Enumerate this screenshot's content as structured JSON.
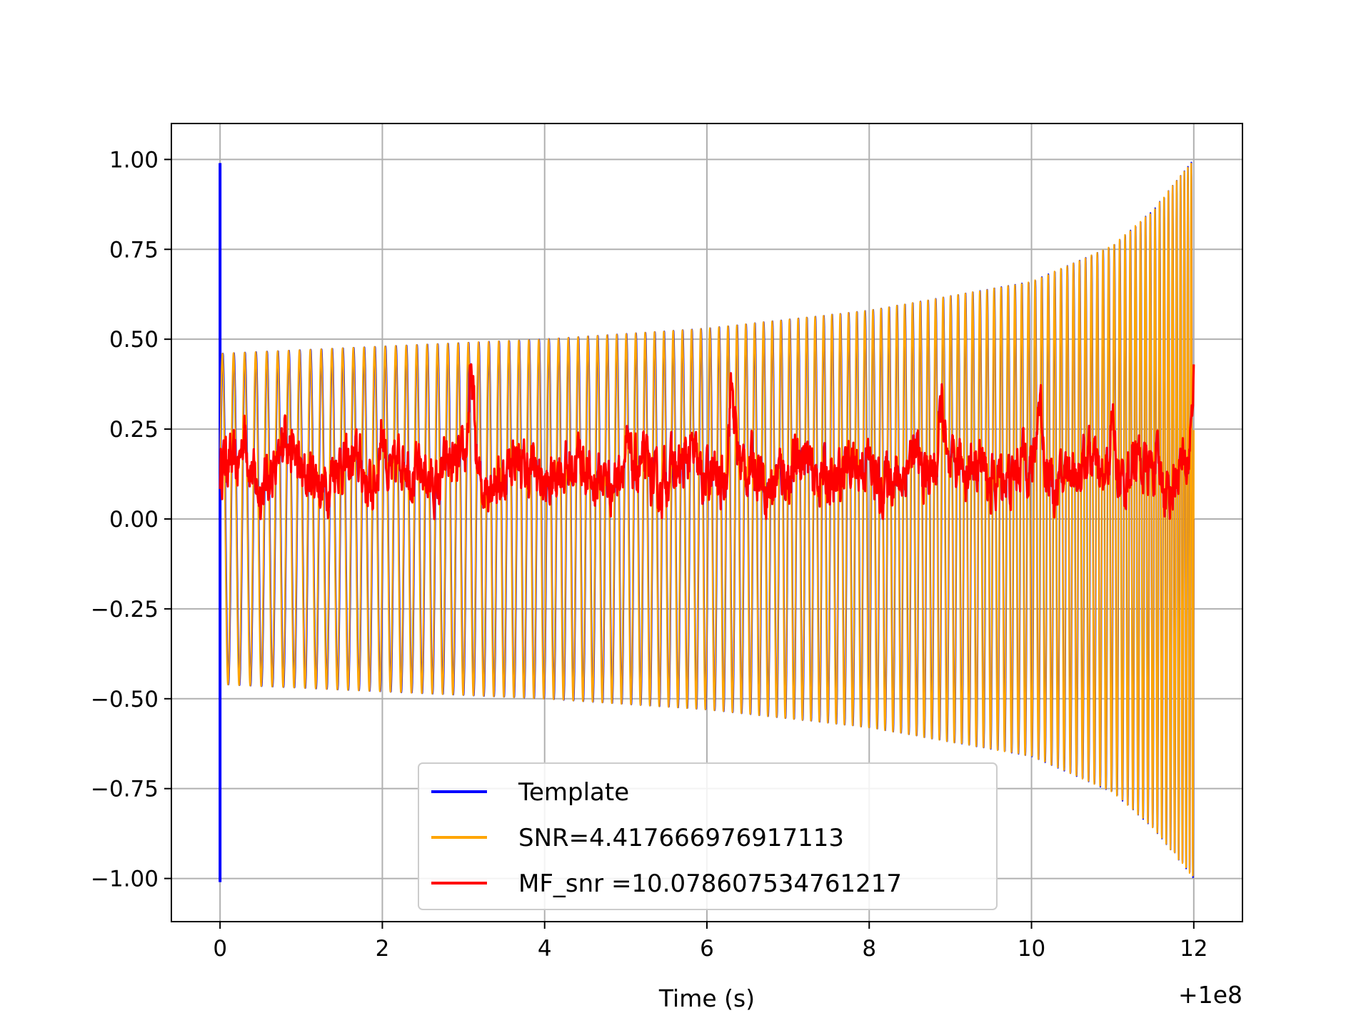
{
  "chart_data": {
    "type": "line",
    "xlabel": "Time (s)",
    "ylabel": "",
    "title": "",
    "x_offset_label": "+1e8",
    "x_offset": 100000000,
    "xlim": [
      99999999.4,
      100000012.6
    ],
    "ylim": [
      -1.12,
      1.1
    ],
    "x_ticks": [
      0,
      2,
      4,
      6,
      8,
      10,
      12
    ],
    "x_tick_labels": [
      "0",
      "2",
      "4",
      "6",
      "8",
      "10",
      "12"
    ],
    "y_ticks": [
      1.0,
      0.75,
      0.5,
      0.25,
      0.0,
      -0.25,
      -0.5,
      -0.75,
      -1.0
    ],
    "y_tick_labels": [
      "1.00",
      "0.75",
      "0.50",
      "0.25",
      "0.00",
      "−0.25",
      "−0.50",
      "−0.75",
      "−1.00"
    ],
    "grid": true,
    "legend_position": "bottom-center",
    "series": [
      {
        "name": "Template",
        "color": "#0000ff",
        "style": "chirp",
        "start": 0.0,
        "end": 12.0,
        "envelope_x": [
          0.0,
          2.0,
          4.0,
          6.0,
          8.0,
          10.0,
          11.0,
          11.5,
          12.0
        ],
        "envelope_y": [
          0.46,
          0.48,
          0.5,
          0.53,
          0.58,
          0.66,
          0.76,
          0.86,
          1.0
        ],
        "cycles": 120,
        "spikes": [
          {
            "x": 0.0,
            "y_min": -1.01,
            "y_max": 0.99
          }
        ]
      },
      {
        "name": "SNR=4.417666976917113",
        "color": "#ffa500",
        "style": "chirp",
        "start": 0.0,
        "end": 12.0,
        "envelope_x": [
          0.0,
          2.0,
          4.0,
          6.0,
          8.0,
          10.0,
          11.0,
          11.5,
          12.0
        ],
        "envelope_y": [
          0.46,
          0.48,
          0.5,
          0.53,
          0.58,
          0.66,
          0.76,
          0.86,
          1.0
        ],
        "cycles": 120
      },
      {
        "name": "MF_snr =10.078607534761217",
        "color": "#ff0000",
        "style": "noise",
        "start": 0.0,
        "end": 12.0,
        "mean": 0.13,
        "amplitude": 0.08,
        "peak_x": [
          0.3,
          0.8,
          2.0,
          3.1,
          6.3,
          8.9,
          10.1,
          11.0,
          12.0
        ],
        "peak_y": [
          0.28,
          0.31,
          0.32,
          0.41,
          0.41,
          0.41,
          0.39,
          0.33,
          0.42
        ]
      }
    ]
  }
}
